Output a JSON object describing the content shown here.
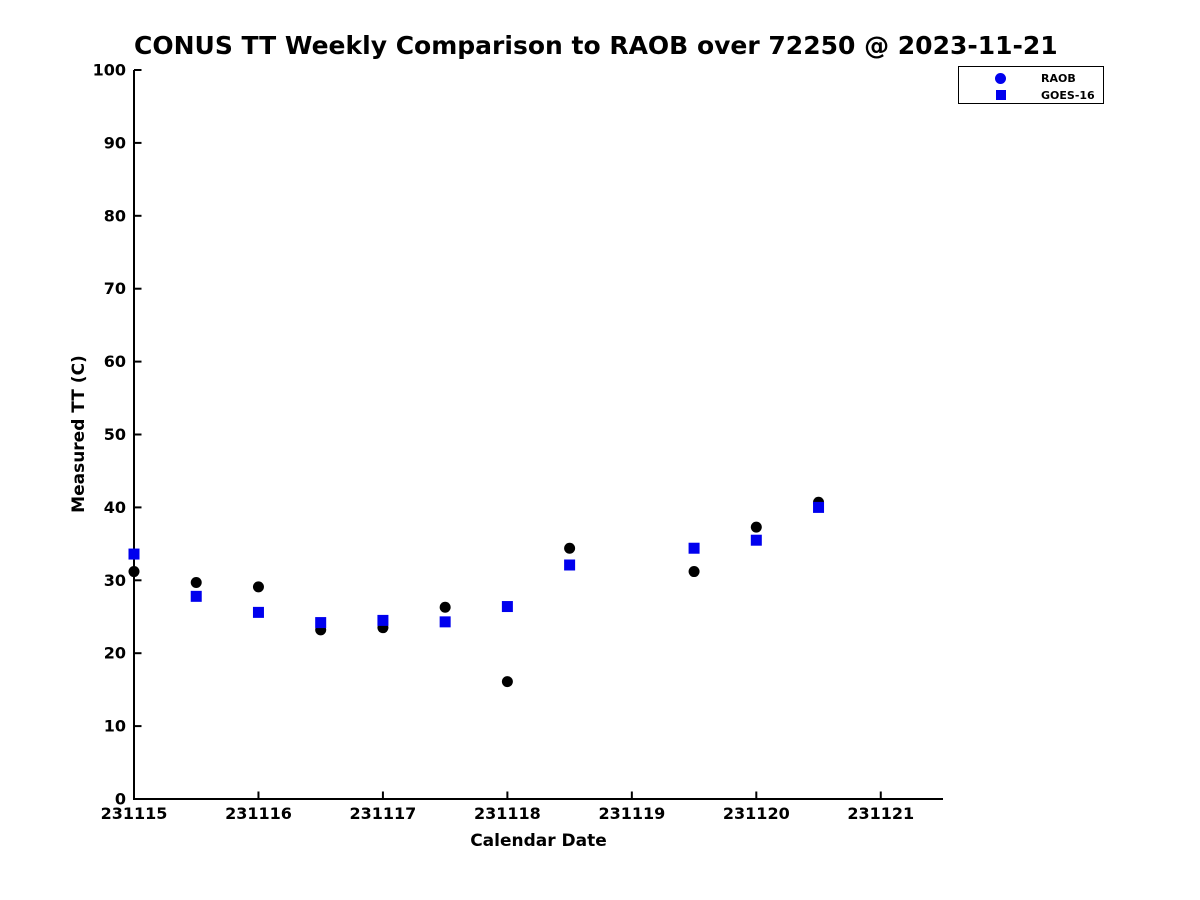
{
  "chart_data": {
    "type": "scatter",
    "title": "CONUS TT Weekly Comparison to RAOB over 72250 @ 2023-11-21",
    "xlabel": "Calendar Date",
    "ylabel": "Measured TT (C)",
    "xlim": [
      231115,
      231121.5
    ],
    "ylim": [
      0,
      100
    ],
    "x_ticks": [
      231115,
      231116,
      231117,
      231118,
      231119,
      231120,
      231121
    ],
    "y_ticks": [
      0,
      10,
      20,
      30,
      40,
      50,
      60,
      70,
      80,
      90,
      100
    ],
    "grid": false,
    "legend_position": "upper-right",
    "text_color": "#000000",
    "axis_color": "#000000",
    "series": [
      {
        "name": "RAOB",
        "marker": "circle",
        "color": "#000000",
        "legend_color": "#0000ee",
        "x": [
          231115,
          231115.5,
          231116,
          231116.5,
          231117,
          231117.5,
          231118,
          231118.5,
          231119.5,
          231120,
          231120.5
        ],
        "y": [
          31.2,
          29.7,
          29.1,
          23.2,
          23.5,
          26.3,
          16.1,
          34.4,
          31.2,
          37.3,
          40.7
        ]
      },
      {
        "name": "GOES-16",
        "marker": "square",
        "color": "#0000ee",
        "legend_color": "#0000ee",
        "x": [
          231115,
          231115.5,
          231116,
          231116.5,
          231117,
          231117.5,
          231118,
          231118.5,
          231119.5,
          231120,
          231120.5
        ],
        "y": [
          33.6,
          27.8,
          25.6,
          24.2,
          24.5,
          24.3,
          26.4,
          32.1,
          34.4,
          35.5,
          40.0
        ]
      }
    ]
  }
}
